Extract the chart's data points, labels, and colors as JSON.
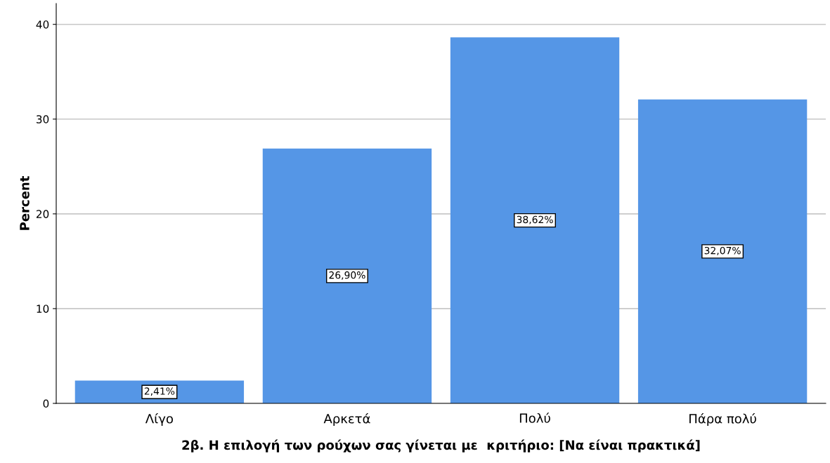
{
  "chart_data": {
    "type": "bar",
    "xlabel": "2β. Η επιλογή των ρούχων σας γίνεται με  κριτήριο: [Να είναι πρακτικά]",
    "ylabel": "Percent",
    "categories": [
      "Λίγο",
      "Αρκετά",
      "Πολύ",
      "Πάρα πολύ"
    ],
    "values": [
      2.41,
      26.9,
      38.62,
      32.07
    ],
    "value_labels": [
      "2,41%",
      "26,90%",
      "38,62%",
      "32,07%"
    ],
    "color": "#5596e6",
    "ylim": [
      0,
      42.2
    ],
    "yticks": [
      0,
      10,
      20,
      30,
      40
    ],
    "grid": "y"
  }
}
